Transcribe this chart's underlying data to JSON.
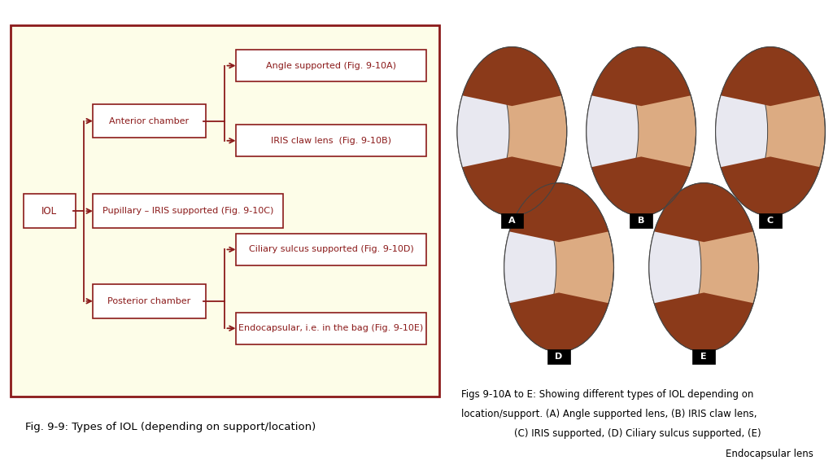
{
  "bg_color": "#fdfde8",
  "box_color": "#ffffff",
  "border_color": "#8B1A1A",
  "line_color": "#8B1A1A",
  "text_color": "#8B1A1A",
  "fig_bg": "#ffffff",
  "diagram_title": "Fig. 9-9: Types of IOL (depending on support/location)",
  "caption_line1": "Figs 9-10A to E: Showing different types of IOL depending on",
  "caption_line2": "location/support. (A) Angle supported lens, (B) IRIS claw lens,",
  "caption_line3": "(C) IRIS supported, (D) Ciliary sulcus supported, (E)",
  "caption_line4": "Endocapsular lens",
  "eye_skin": "#DEB887",
  "eye_outline": "#555555",
  "eye_dark": "#8B4513",
  "eye_lens": "#D0D0E8"
}
